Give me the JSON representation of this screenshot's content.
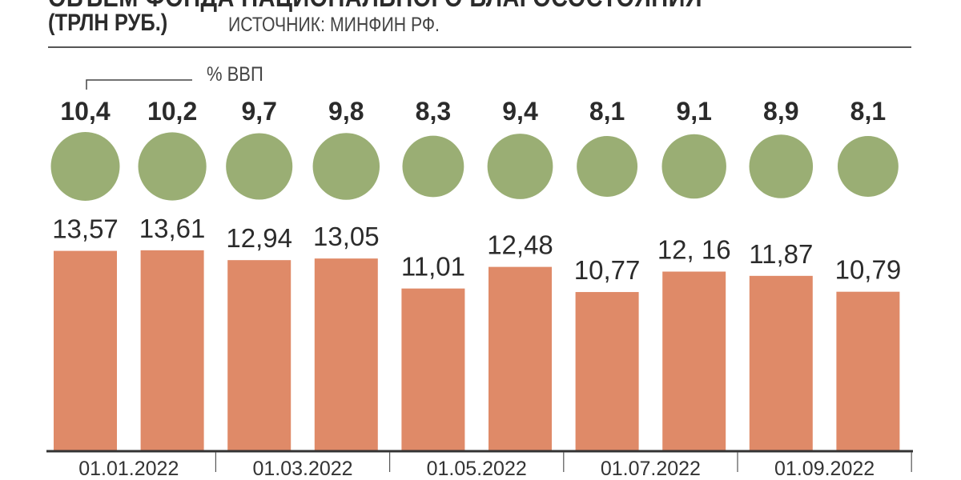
{
  "header": {
    "title": "ОБЪЕМ ФОНДА НАЦИОНАЛЬНОГО БЛАГОСОСТОЯНИЯ",
    "unit": "(ТРЛН РУБ.)",
    "source": "ИСТОЧНИК: МИНФИН РФ."
  },
  "chart_data": {
    "type": "bar",
    "title": "ОБЪЕМ ФОНДА НАЦИОНАЛЬНОГО БЛАГОСОСТОЯНИЯ (ТРЛН РУБ.)",
    "ylim": [
      0,
      14
    ],
    "grid": false,
    "x_tick_labels": [
      "01.01.2022",
      "01.03.2022",
      "01.05.2022",
      "01.07.2022",
      "01.09.2022"
    ],
    "series": [
      {
        "name": "",
        "values": [
          13.57,
          13.61,
          12.94,
          13.05,
          11.01,
          12.48,
          10.77,
          12.16,
          11.87,
          10.79
        ],
        "labels": [
          "13,57",
          "13,61",
          "12,94",
          "13,05",
          "11,01",
          "12,48",
          "10,77",
          "12, 16",
          "11,87",
          "10,79"
        ]
      },
      {
        "name": "% ВВП",
        "values": [
          10.4,
          10.2,
          9.7,
          9.8,
          8.3,
          9.4,
          8.1,
          9.1,
          8.9,
          8.1
        ],
        "labels": [
          "10,4",
          "10,2",
          "9,7",
          "9,8",
          "8,3",
          "9,4",
          "8,1",
          "9,1",
          "8,9",
          "8,1"
        ]
      }
    ],
    "colors": {
      "bars": "#df8a68",
      "circles": "#9aae74",
      "text": "#2b2b2b",
      "axis": "#333333"
    }
  }
}
